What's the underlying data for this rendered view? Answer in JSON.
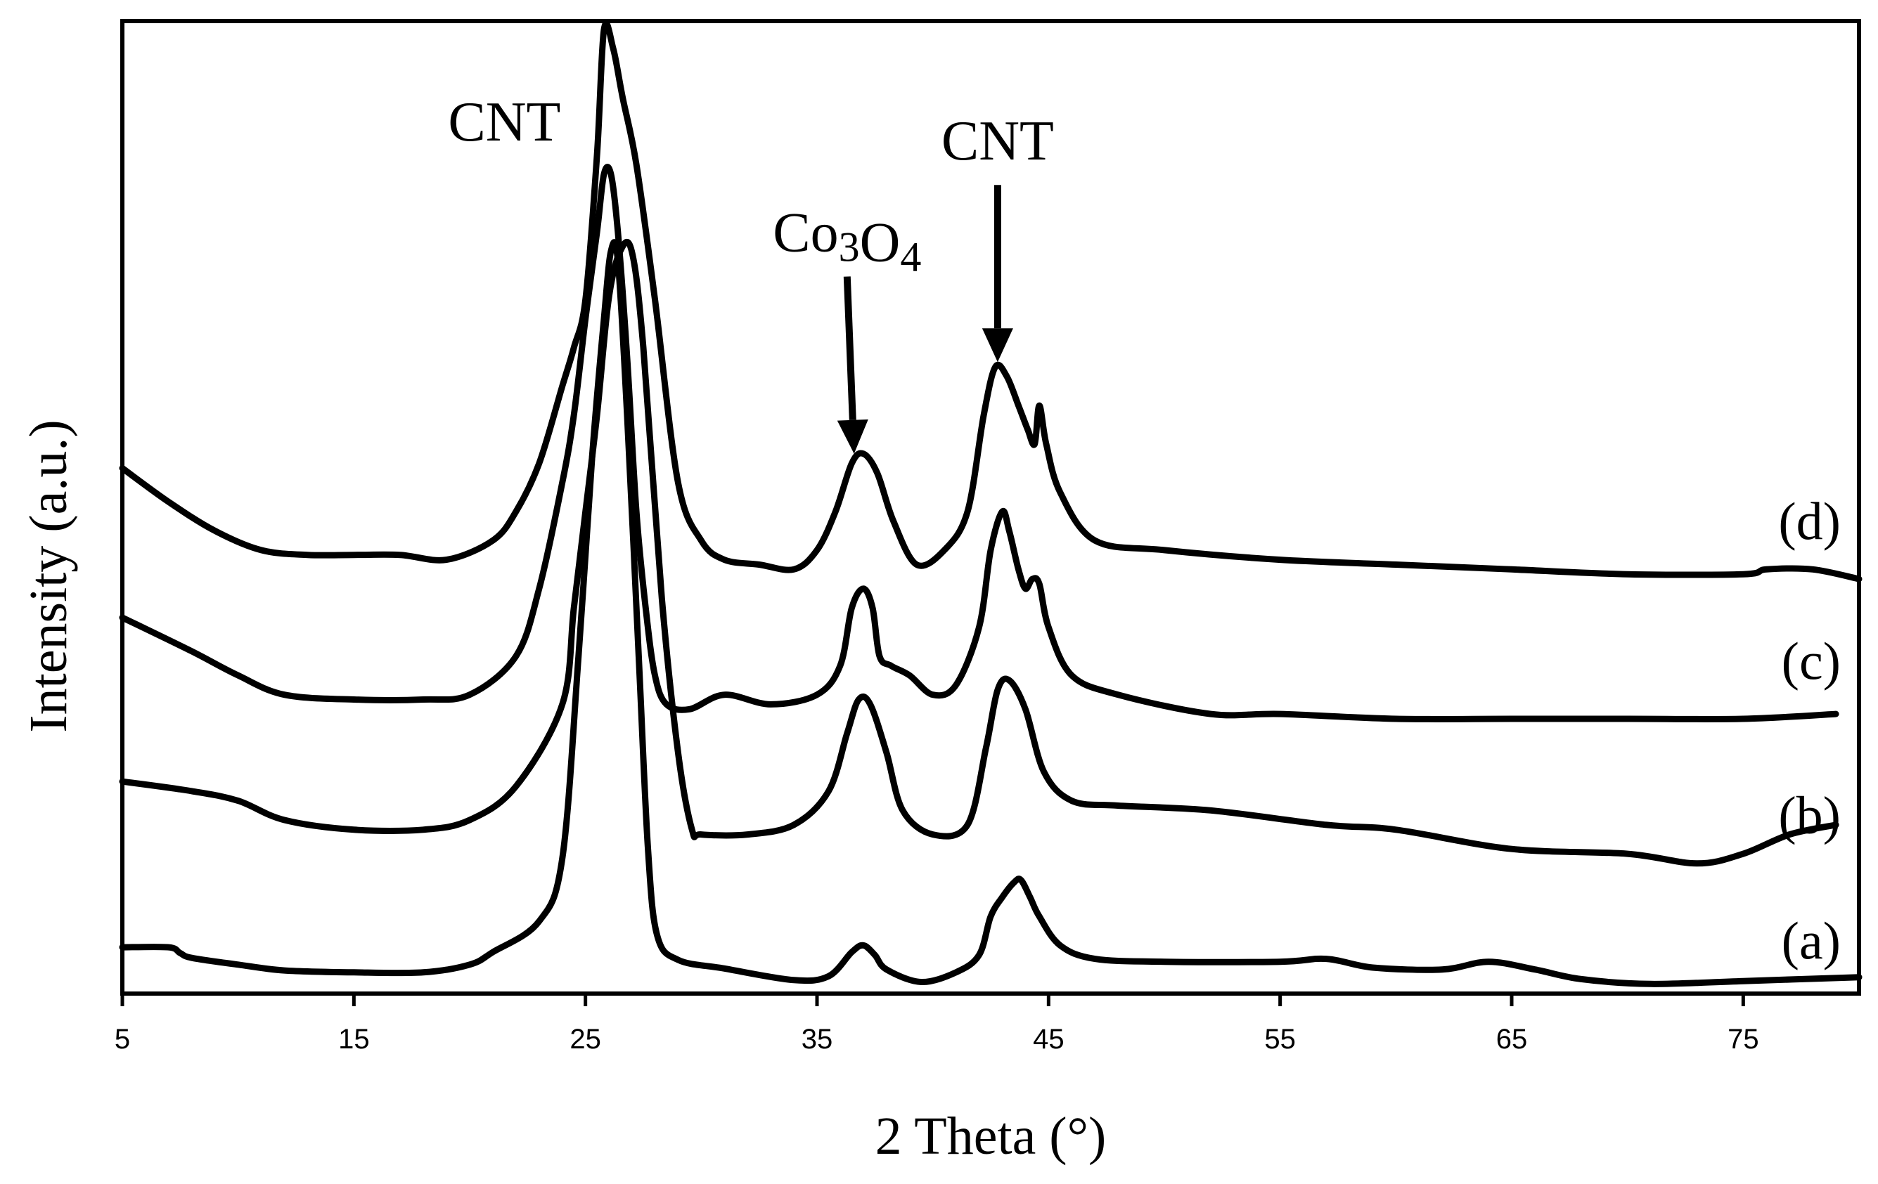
{
  "chart_data": {
    "type": "line",
    "title": "",
    "xlabel": "2 Theta (°)",
    "ylabel": "Intensity (a.u.)",
    "xlim": [
      5,
      80
    ],
    "ylim": [
      0,
      1
    ],
    "xticks": [
      5,
      15,
      25,
      35,
      45,
      55,
      65,
      75
    ],
    "xtick_labels": [
      "5",
      "15",
      "25",
      "35",
      "45",
      "55",
      "65",
      "75"
    ],
    "yticks": [],
    "grid": false,
    "line_color": "#000000",
    "annotations": [
      {
        "name": "cnt-label-main",
        "text": "CNT",
        "x": 21.5,
        "y": 0.885,
        "arrow": false
      },
      {
        "name": "co3o4-label",
        "text": "Co3O4",
        "x": 36.3,
        "y": 0.77,
        "arrow_to": {
          "x": 36.6,
          "y": 0.56
        }
      },
      {
        "name": "cnt-label-second",
        "text": "CNT",
        "x": 42.8,
        "y": 0.865,
        "arrow_to": {
          "x": 42.8,
          "y": 0.655
        }
      }
    ],
    "series": [
      {
        "name": "(a)",
        "label_y": 0.055,
        "x": [
          5,
          7,
          7.5,
          8,
          10,
          12,
          15,
          18,
          20,
          21,
          23,
          24,
          24.7,
          25.3,
          25.8,
          26.1,
          26.4,
          26.8,
          27.3,
          27.7,
          28.1,
          29,
          31,
          34,
          35.5,
          36.5,
          37,
          37.5,
          38,
          39.5,
          41,
          42,
          42.5,
          43,
          43.5,
          43.8,
          44.2,
          44.6,
          45.5,
          47,
          50,
          55,
          57,
          59,
          62,
          64,
          66,
          68,
          71,
          75,
          80
        ],
        "y": [
          0.048,
          0.048,
          0.042,
          0.037,
          0.03,
          0.024,
          0.022,
          0.022,
          0.03,
          0.043,
          0.075,
          0.14,
          0.35,
          0.56,
          0.7,
          0.77,
          0.76,
          0.6,
          0.35,
          0.15,
          0.06,
          0.035,
          0.026,
          0.014,
          0.018,
          0.043,
          0.05,
          0.04,
          0.025,
          0.012,
          0.022,
          0.04,
          0.08,
          0.1,
          0.115,
          0.118,
          0.1,
          0.08,
          0.05,
          0.036,
          0.033,
          0.033,
          0.036,
          0.027,
          0.025,
          0.033,
          0.025,
          0.015,
          0.01,
          0.013,
          0.017
        ]
      },
      {
        "name": "(b)",
        "label_y": 0.185,
        "x": [
          5,
          8,
          10,
          12,
          15,
          18,
          20,
          22,
          24,
          24.5,
          25,
          25.5,
          26,
          26.5,
          27,
          27.5,
          28.3,
          29,
          29.6,
          30,
          32,
          34,
          35.5,
          36.3,
          36.8,
          37.3,
          38,
          38.7,
          40,
          41.5,
          42.3,
          42.8,
          43.3,
          44,
          44.8,
          46,
          48,
          52,
          57,
          60,
          65,
          70,
          73,
          75,
          77,
          79
        ],
        "y": [
          0.22,
          0.21,
          0.2,
          0.18,
          0.17,
          0.17,
          0.18,
          0.215,
          0.3,
          0.4,
          0.5,
          0.6,
          0.72,
          0.77,
          0.77,
          0.67,
          0.41,
          0.25,
          0.17,
          0.165,
          0.165,
          0.175,
          0.21,
          0.27,
          0.305,
          0.3,
          0.25,
          0.19,
          0.165,
          0.175,
          0.255,
          0.315,
          0.325,
          0.295,
          0.23,
          0.2,
          0.195,
          0.19,
          0.175,
          0.17,
          0.15,
          0.145,
          0.135,
          0.145,
          0.165,
          0.175
        ]
      },
      {
        "name": "(c)",
        "label_y": 0.345,
        "x": [
          5,
          8,
          10,
          12,
          15,
          18,
          20,
          22,
          23,
          24,
          24.5,
          25,
          25.5,
          25.8,
          26.1,
          26.4,
          26.8,
          27.2,
          27.6,
          28,
          28.5,
          29.5,
          31,
          33,
          35,
          36,
          36.5,
          37,
          37.4,
          37.7,
          38.2,
          39,
          40,
          41,
          42,
          42.5,
          43,
          43.3,
          43.7,
          44,
          44.3,
          44.6,
          45,
          46,
          48,
          52,
          55,
          60,
          65,
          70,
          75,
          79
        ],
        "y": [
          0.39,
          0.355,
          0.33,
          0.31,
          0.305,
          0.305,
          0.31,
          0.35,
          0.42,
          0.53,
          0.6,
          0.7,
          0.79,
          0.85,
          0.85,
          0.79,
          0.66,
          0.5,
          0.4,
          0.33,
          0.3,
          0.295,
          0.31,
          0.3,
          0.31,
          0.34,
          0.4,
          0.42,
          0.4,
          0.35,
          0.34,
          0.33,
          0.31,
          0.32,
          0.38,
          0.46,
          0.5,
          0.48,
          0.44,
          0.42,
          0.43,
          0.425,
          0.38,
          0.33,
          0.31,
          0.29,
          0.29,
          0.285,
          0.285,
          0.285,
          0.285,
          0.29
        ]
      },
      {
        "name": "(d)",
        "label_y": 0.49,
        "x": [
          5,
          7,
          9,
          11,
          13,
          15,
          17,
          19,
          21,
          22,
          23,
          24,
          24.5,
          25,
          25.5,
          25.8,
          26.2,
          26.6,
          27.2,
          28,
          29,
          30,
          31,
          32.5,
          34,
          35,
          35.8,
          36.5,
          37,
          37.6,
          38.3,
          39.3,
          40.5,
          41.5,
          42.2,
          42.7,
          43.2,
          43.7,
          44.1,
          44.4,
          44.6,
          44.9,
          45.5,
          47,
          50,
          55,
          60,
          65,
          70,
          75,
          76,
          78,
          80
        ],
        "y": [
          0.545,
          0.51,
          0.48,
          0.46,
          0.455,
          0.455,
          0.455,
          0.45,
          0.47,
          0.5,
          0.55,
          0.63,
          0.67,
          0.72,
          0.87,
          1.0,
          0.98,
          0.93,
          0.86,
          0.72,
          0.53,
          0.47,
          0.45,
          0.445,
          0.44,
          0.46,
          0.5,
          0.55,
          0.56,
          0.54,
          0.49,
          0.445,
          0.46,
          0.5,
          0.6,
          0.65,
          0.64,
          0.61,
          0.585,
          0.57,
          0.61,
          0.57,
          0.52,
          0.47,
          0.46,
          0.45,
          0.445,
          0.44,
          0.435,
          0.435,
          0.44,
          0.44,
          0.43
        ]
      }
    ]
  }
}
